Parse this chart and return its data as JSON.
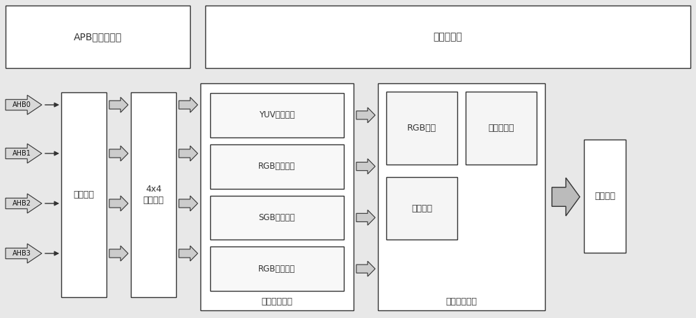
{
  "bg_color": "#e8e8e8",
  "box_color": "#ffffff",
  "box_edge": "#333333",
  "text_color": "#333333",
  "title_top1": "APB寄存器接口",
  "title_top2": "时序产生器",
  "label_bus": "总线接口",
  "label_switch": "4x4\n交换矩阵",
  "label_indep": "独立处理通道",
  "label_synth": "合成处理通道",
  "label_output": "输出控制",
  "ahb_labels": [
    "AHB0",
    "AHB1",
    "AHB2",
    "AHB3"
  ],
  "channel_labels": [
    "YUV处理通道",
    "RGB处理通道",
    "SGB处理通道",
    "RGB处理通道"
  ],
  "sub_labels": [
    "RGB调整",
    "半透明叠加",
    "通道合并"
  ],
  "font_size": 9,
  "font_family": "SimHei",
  "fig_w": 10.0,
  "fig_h": 4.58,
  "dpi": 100
}
